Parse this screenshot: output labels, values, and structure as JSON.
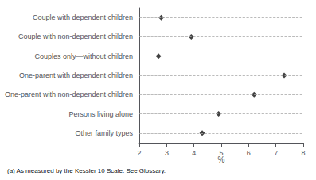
{
  "chart_data": {
    "type": "scatter",
    "categories": [
      "Couple with dependent children",
      "Couple with non-dependent children",
      "Couples only—without children",
      "One-parent with dependent children",
      "One-parent with non-dependent children",
      "Persons living alone",
      "Other family types"
    ],
    "values": [
      2.8,
      3.9,
      2.7,
      7.3,
      6.2,
      4.9,
      4.3
    ],
    "color": "#111111",
    "marker": "diamond",
    "xlabel": "%",
    "xlim": [
      2,
      8
    ],
    "xticks": [
      2,
      3,
      4,
      5,
      6,
      7,
      8
    ],
    "grid": true,
    "footnote": "(a) As measured by the Kessler 10 Scale. See Glossary."
  }
}
